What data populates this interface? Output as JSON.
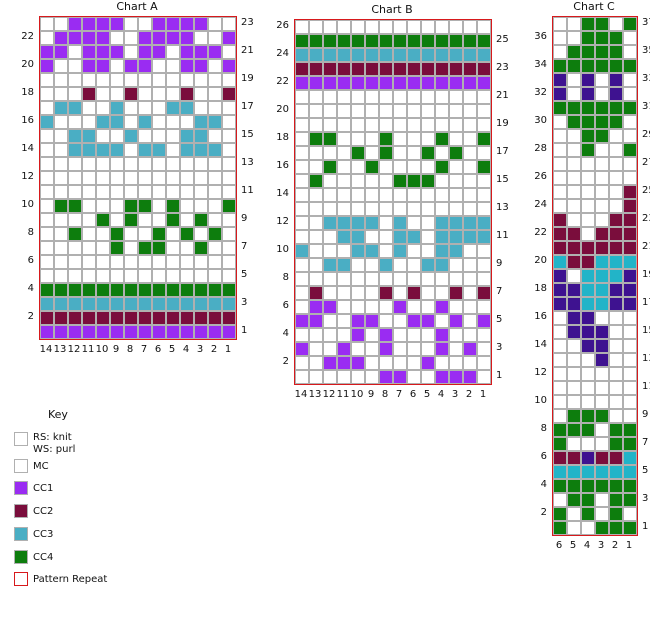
{
  "colors": {
    "MC": "#ffffff",
    "CC1": "#9a2cf2",
    "CC2": "#7a0d3c",
    "CC3": "#4aaec4",
    "CC4": "#0d7d0d",
    "CC5": "#3e1290",
    "CC6": "#22b4c8",
    "grid": "#b0b0b0",
    "repeat": "#d7191c"
  },
  "charts": [
    {
      "id": "a",
      "title": "Chart A",
      "col_labels": [
        "14",
        "13",
        "12",
        "11",
        "10",
        "9",
        "8",
        "7",
        "6",
        "5",
        "4",
        "3",
        "2",
        "1"
      ],
      "rows": [
        "MM1111MM1111MM",
        "M1111MM1111MM1",
        "11M111M11M111M",
        "1MM11M11MM11M1",
        "MMMMMMMMMMMMMM",
        "MMM2MM2MMM2MM2",
        "M33MM3MMM33MMM",
        "3MMM33M3MMM33M",
        "MM33MM3MMM33MM",
        "MM3333M33M333M",
        "MMMMMMMMMMMMMM",
        "MMMMMMMMMMMMMM",
        "MMMMMMMMMMMMMM",
        "M44MMM44M4MMM4",
        "MMMM4M4MM4M4MM",
        "MM4MM4MM4M4M4M",
        "MMMMM4M44MM4MM",
        "MMMMMMMMMMMMMM",
        "MMMMMMMMMMMMMM",
        "44444444444444",
        "33333333333333",
        "22222222222222",
        "11111111111111"
      ]
    },
    {
      "id": "b",
      "title": "Chart B",
      "col_labels": [
        "14",
        "13",
        "12",
        "11",
        "10",
        "9",
        "8",
        "7",
        "6",
        "5",
        "4",
        "3",
        "2",
        "1"
      ],
      "rows": [
        "MMMMMMMMMMMMMM",
        "44444444444444",
        "33333333333333",
        "22222222222222",
        "11111111111111",
        "MMMMMMMMMMMMMM",
        "MMMMMMMMMMMMMM",
        "MMMMMMMMMMMMMM",
        "M44MMM4MMM4MM4",
        "MMMM4M4MM4M4MM",
        "MM4MM4MMMM4MM4",
        "M4MMMMM444MMMM",
        "MMMMMMMMMMMMMM",
        "MMMMMMMMMMMMMM",
        "MM3333M3MM3333",
        "MMM33MM33M3333",
        "3MMM33M3MM33MM",
        "MM33MM3MM33MMM",
        "MMMMMMMMMMMMMM",
        "M2MMMM2M2MM2M2",
        "M11MMMM1MM1MMM",
        "11MM11MM11M1M1",
        "MMMM1M1MMM1MMM",
        "1MM1MM1MMM1M1M",
        "MM111MMMM1MMMM",
        "MMMMMM11MM111M"
      ]
    },
    {
      "id": "c",
      "title": "Chart C",
      "col_labels": [
        "6",
        "5",
        "4",
        "3",
        "2",
        "1"
      ],
      "rows": [
        "MM44M4",
        "MM444M",
        "M4444M",
        "444444",
        "5M5M5M",
        "5M5M5M",
        "444444",
        "M4444M",
        "MM44MM",
        "MM4MM4",
        "MMMMMM",
        "MMMMMM",
        "MMMMM2",
        "MMMMM2",
        "2MMM22",
        "22M222",
        "222222",
        "622666",
        "5M6665",
        "556655",
        "556655",
        "M55MMM",
        "M555MM",
        "MM55MM",
        "MMM5MM",
        "MMMMMM",
        "MMMMMM",
        "MMMMMM",
        "M444MM",
        "444M44",
        "4MMM44",
        "225226",
        "666666",
        "444444",
        "M44M44",
        "4M4M4M",
        "4MM444"
      ]
    }
  ],
  "key": {
    "title": "Key",
    "items": [
      {
        "label": "RS: knit",
        "label2": "WS: purl",
        "color": "MC",
        "repeat": false
      },
      {
        "label": "MC",
        "color": "MC",
        "repeat": false
      },
      {
        "label": "CC1",
        "color": "CC1",
        "repeat": false
      },
      {
        "label": "CC2",
        "color": "CC2",
        "repeat": false
      },
      {
        "label": "CC3",
        "color": "CC3",
        "repeat": false
      },
      {
        "label": "CC4",
        "color": "CC4",
        "repeat": false
      },
      {
        "label": "Pattern Repeat",
        "color": "MC",
        "repeat": true
      }
    ]
  }
}
